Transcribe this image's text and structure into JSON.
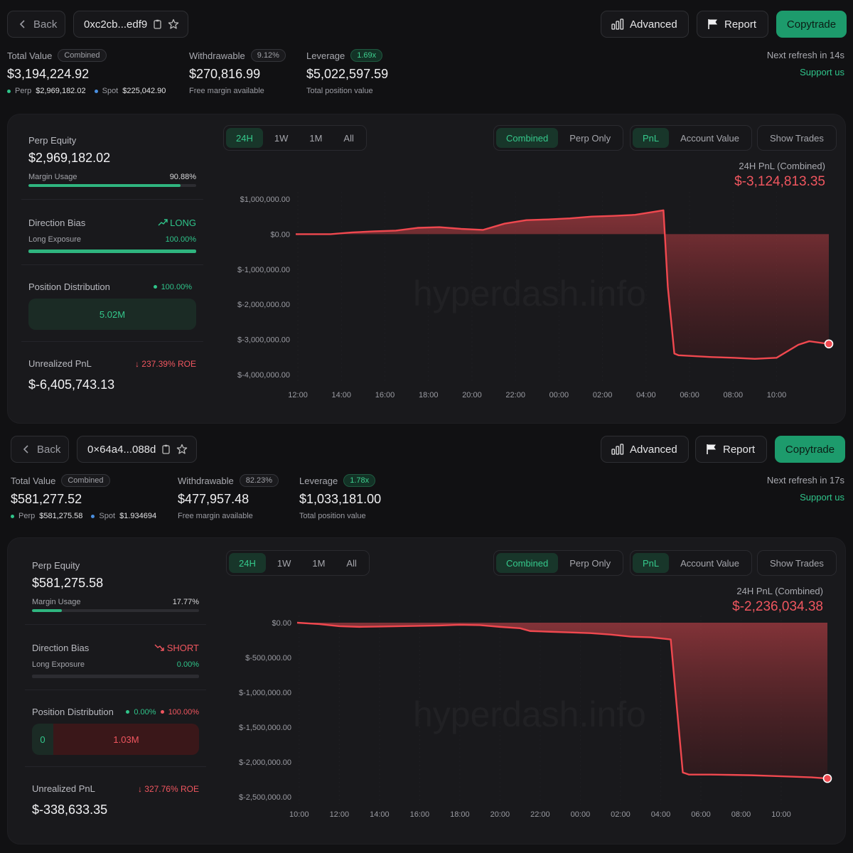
{
  "panels": [
    {
      "nav": {
        "back_label": "Back",
        "address": "0xc2cb...edf9",
        "advanced_label": "Advanced",
        "report_label": "Report",
        "copytrade_label": "Copytrade"
      },
      "stats": {
        "total_value": {
          "label": "Total Value",
          "badge": "Combined",
          "value": "$3,194,224.92",
          "perp_label": "Perp",
          "perp_value": "$2,969,182.02",
          "spot_label": "Spot",
          "spot_value": "$225,042.90"
        },
        "withdrawable": {
          "label": "Withdrawable",
          "badge": "9.12%",
          "value": "$270,816.99",
          "sub": "Free margin available"
        },
        "leverage": {
          "label": "Leverage",
          "badge": "1.69x",
          "value": "$5,022,597.59",
          "sub": "Total position value"
        }
      },
      "refresh": {
        "text": "Next refresh in 14s",
        "support": "Support us"
      },
      "side": {
        "perp_equity_label": "Perp Equity",
        "perp_equity": "$2,969,182.02",
        "margin_usage_label": "Margin Usage",
        "margin_usage": "90.88%",
        "margin_fraction": 0.9088,
        "direction_bias_label": "Direction Bias",
        "direction": "LONG",
        "long_exposure_label": "Long Exposure",
        "long_exposure": "100.00%",
        "long_fraction": 1.0,
        "position_distribution_label": "Position Distribution",
        "dist_long_pct": "100.00%",
        "dist_short_pct": "",
        "dist_value": "5.02M",
        "dist_zero": "",
        "upnl_label": "Unrealized PnL",
        "roe": "237.39% ROE",
        "upnl": "$-6,405,743.13"
      },
      "controls": {
        "ranges": [
          "24H",
          "1W",
          "1M",
          "All"
        ],
        "range_active": "24H",
        "modes": [
          "Combined",
          "Perp Only"
        ],
        "mode_active": "Combined",
        "metrics": [
          "PnL",
          "Account Value"
        ],
        "metric_active": "PnL",
        "show_trades": "Show Trades"
      },
      "pnl_header": {
        "label": "24H PnL (Combined)",
        "value": "$-3,124,813.35"
      },
      "watermark": "hyperdash.info",
      "chart_data": {
        "type": "area",
        "ylim": [
          -4000000,
          1000000
        ],
        "yticks": [
          1000000,
          0,
          -1000000,
          -2000000,
          -3000000,
          -4000000
        ],
        "ytick_labels": [
          "$1,000,000.00",
          "$0.00",
          "$-1,000,000.00",
          "$-2,000,000.00",
          "$-3,000,000.00",
          "$-4,000,000.00"
        ],
        "xlim": [
          11.9,
          36.4
        ],
        "xticks": [
          12,
          14,
          16,
          18,
          20,
          22,
          24,
          26,
          28,
          30,
          32,
          34
        ],
        "xtick_labels": [
          "12:00",
          "14:00",
          "16:00",
          "18:00",
          "20:00",
          "22:00",
          "00:00",
          "02:00",
          "04:00",
          "06:00",
          "08:00",
          "10:00"
        ],
        "x": [
          11.9,
          13.5,
          14.5,
          15.5,
          16.5,
          17.5,
          18.5,
          19.5,
          20.5,
          21.5,
          22.5,
          23.5,
          24.5,
          25.5,
          26.5,
          27.5,
          28.5,
          28.8,
          29.0,
          29.3,
          29.5,
          31.0,
          32.0,
          33.0,
          34.0,
          35.0,
          35.5,
          36.4
        ],
        "y": [
          0,
          0,
          50000,
          80000,
          100000,
          180000,
          200000,
          150000,
          120000,
          300000,
          400000,
          420000,
          450000,
          500000,
          520000,
          550000,
          650000,
          680000,
          -1500000,
          -3400000,
          -3450000,
          -3500000,
          -3520000,
          -3550000,
          -3520000,
          -3150000,
          -3050000,
          -3124813
        ]
      }
    },
    {
      "nav": {
        "back_label": "Back",
        "address": "0×64a4...088d",
        "advanced_label": "Advanced",
        "report_label": "Report",
        "copytrade_label": "Copytrade"
      },
      "stats": {
        "total_value": {
          "label": "Total Value",
          "badge": "Combined",
          "value": "$581,277.52",
          "perp_label": "Perp",
          "perp_value": "$581,275.58",
          "spot_label": "Spot",
          "spot_value": "$1.934694"
        },
        "withdrawable": {
          "label": "Withdrawable",
          "badge": "82.23%",
          "value": "$477,957.48",
          "sub": "Free margin available"
        },
        "leverage": {
          "label": "Leverage",
          "badge": "1.78x",
          "value": "$1,033,181.00",
          "sub": "Total position value"
        }
      },
      "refresh": {
        "text": "Next refresh in 17s",
        "support": "Support us"
      },
      "side": {
        "perp_equity_label": "Perp Equity",
        "perp_equity": "$581,275.58",
        "margin_usage_label": "Margin Usage",
        "margin_usage": "17.77%",
        "margin_fraction": 0.1777,
        "direction_bias_label": "Direction Bias",
        "direction": "SHORT",
        "long_exposure_label": "Long Exposure",
        "long_exposure": "0.00%",
        "long_fraction": 0.0,
        "position_distribution_label": "Position Distribution",
        "dist_long_pct": "0.00%",
        "dist_short_pct": "100.00%",
        "dist_value": "1.03M",
        "dist_zero": "0",
        "upnl_label": "Unrealized PnL",
        "roe": "327.76% ROE",
        "upnl": "$-338,633.35"
      },
      "controls": {
        "ranges": [
          "24H",
          "1W",
          "1M",
          "All"
        ],
        "range_active": "24H",
        "modes": [
          "Combined",
          "Perp Only"
        ],
        "mode_active": "Combined",
        "metrics": [
          "PnL",
          "Account Value"
        ],
        "metric_active": "PnL",
        "show_trades": "Show Trades"
      },
      "pnl_header": {
        "label": "24H PnL (Combined)",
        "value": "$-2,236,034.38"
      },
      "watermark": "hyperdash.info",
      "chart_data": {
        "type": "area",
        "ylim": [
          -2500000,
          0
        ],
        "yticks": [
          0,
          -500000,
          -1000000,
          -1500000,
          -2000000,
          -2500000
        ],
        "ytick_labels": [
          "$0.00",
          "$-500,000.00",
          "$-1,000,000.00",
          "$-1,500,000.00",
          "$-2,000,000.00",
          "$-2,500,000.00"
        ],
        "xlim": [
          9.9,
          36.3
        ],
        "xticks": [
          10,
          12,
          14,
          16,
          18,
          20,
          22,
          24,
          26,
          28,
          30,
          32,
          34
        ],
        "xtick_labels": [
          "10:00",
          "12:00",
          "14:00",
          "16:00",
          "18:00",
          "20:00",
          "22:00",
          "00:00",
          "02:00",
          "04:00",
          "06:00",
          "08:00",
          "10:00"
        ],
        "x": [
          9.9,
          11.0,
          12.0,
          13.0,
          14.0,
          15.0,
          16.0,
          17.0,
          18.0,
          19.0,
          20.0,
          21.0,
          21.5,
          22.5,
          23.5,
          24.5,
          25.5,
          26.5,
          27.5,
          28.5,
          28.8,
          29.1,
          29.4,
          30.5,
          31.5,
          32.5,
          33.5,
          34.5,
          35.5,
          36.3
        ],
        "y": [
          0,
          -20000,
          -50000,
          -60000,
          -55000,
          -50000,
          -45000,
          -40000,
          -30000,
          -35000,
          -60000,
          -80000,
          -120000,
          -130000,
          -140000,
          -150000,
          -170000,
          -200000,
          -210000,
          -240000,
          -1200000,
          -2150000,
          -2180000,
          -2180000,
          -2185000,
          -2190000,
          -2200000,
          -2210000,
          -2220000,
          -2236034
        ]
      }
    }
  ]
}
